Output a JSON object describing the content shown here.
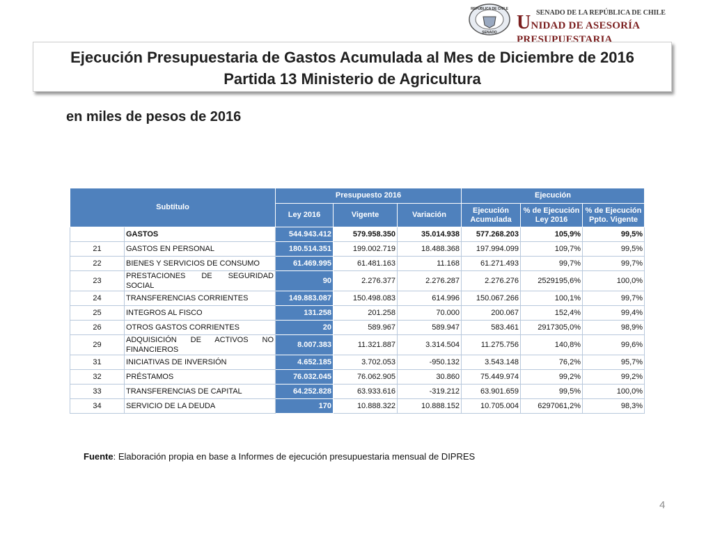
{
  "header": {
    "seal_top": "REPÚBLICA DE CHILE",
    "seal_bottom": "SENADO",
    "senado": "SENADO DE LA REPÚBLICA DE CHILE",
    "unidad": "UNIDAD DE ASESORÍA PRESUPUESTARIA"
  },
  "title": [
    "Ejecución Presupuestaria de Gastos Acumulada al Mes de Diciembre de 2016",
    "Partida 13 Ministerio de Agricultura"
  ],
  "subtitle": "en miles de pesos de 2016",
  "table": {
    "groups": [
      "Subtítulo",
      "Presupuesto 2016",
      "Ejecución"
    ],
    "columns": [
      "Ley 2016",
      "Vigente",
      "Variación",
      "Ejecución Acumulada",
      "% de Ejecución Ley 2016",
      "% de Ejecución Ppto. Vigente"
    ],
    "rows": [
      [
        null,
        "GASTOS",
        "544.943.412",
        "579.958.350",
        "35.014.938",
        "577.268.203",
        "105,9%",
        "99,5%"
      ],
      [
        "21",
        "GASTOS EN PERSONAL",
        "180.514.351",
        "199.002.719",
        "18.488.368",
        "197.994.099",
        "109,7%",
        "99,5%"
      ],
      [
        "22",
        "BIENES Y SERVICIOS DE CONSUMO",
        "61.469.995",
        "61.481.163",
        "11.168",
        "61.271.493",
        "99,7%",
        "99,7%"
      ],
      [
        "23",
        "PRESTACIONES DE SEGURIDAD SOCIAL",
        "90",
        "2.276.377",
        "2.276.287",
        "2.276.276",
        "2529195,6%",
        "100,0%"
      ],
      [
        "24",
        "TRANSFERENCIAS CORRIENTES",
        "149.883.087",
        "150.498.083",
        "614.996",
        "150.067.266",
        "100,1%",
        "99,7%"
      ],
      [
        "25",
        "INTEGROS AL FISCO",
        "131.258",
        "201.258",
        "70.000",
        "200.067",
        "152,4%",
        "99,4%"
      ],
      [
        "26",
        "OTROS GASTOS CORRIENTES",
        "20",
        "589.967",
        "589.947",
        "583.461",
        "2917305,0%",
        "98,9%"
      ],
      [
        "29",
        "ADQUISICIÓN DE ACTIVOS NO FINANCIEROS",
        "8.007.383",
        "11.321.887",
        "3.314.504",
        "11.275.756",
        "140,8%",
        "99,6%"
      ],
      [
        "31",
        "INICIATIVAS DE INVERSIÓN",
        "4.652.185",
        "3.702.053",
        "-950.132",
        "3.543.148",
        "76,2%",
        "95,7%"
      ],
      [
        "32",
        "PRÉSTAMOS",
        "76.032.045",
        "76.062.905",
        "30.860",
        "75.449.974",
        "99,2%",
        "99,2%"
      ],
      [
        "33",
        "TRANSFERENCIAS DE CAPITAL",
        "64.252.828",
        "63.933.616",
        "-319.212",
        "63.901.659",
        "99,5%",
        "100,0%"
      ],
      [
        "34",
        "SERVICIO DE LA DEUDA",
        "170",
        "10.888.322",
        "10.888.152",
        "10.705.004",
        "6297061,2%",
        "98,3%"
      ]
    ]
  },
  "footer": {
    "source_label": "Fuente",
    "source_text": ": Elaboración propia en base  a Informes de ejecución presupuestaria mensual de DIPRES",
    "page": "4"
  }
}
